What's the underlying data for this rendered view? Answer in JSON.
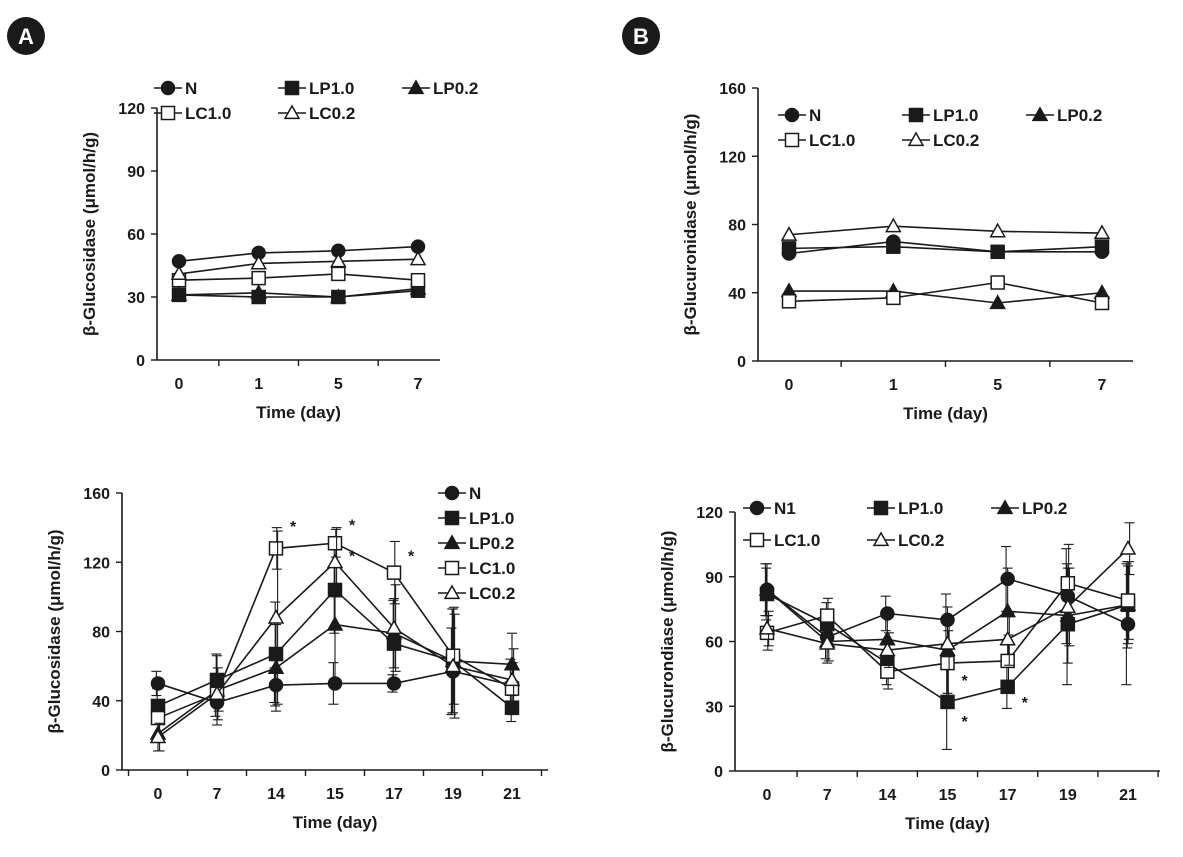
{
  "colors": {
    "ink": "#1a1a1a",
    "badge": "#1a1a1a",
    "badge_text": "#ffffff",
    "open_fill": "#ffffff"
  },
  "panels": [
    {
      "label": "A"
    },
    {
      "label": "B"
    }
  ],
  "chart_data": [
    {
      "type": "line",
      "panel": "A",
      "ylabel": "β-Glucosidase (μmol/h/g)",
      "xlabel": "Time (day)",
      "categories": [
        "0",
        "1",
        "5",
        "7"
      ],
      "ylim": [
        0,
        120
      ],
      "yticks": [
        "0",
        "30",
        "60",
        "90",
        "120"
      ],
      "legend_placement": "top",
      "series": [
        {
          "name": "N",
          "marker": "circle",
          "filled": true,
          "values": [
            47,
            51,
            52,
            54
          ]
        },
        {
          "name": "LP1.0",
          "marker": "square",
          "filled": true,
          "values": [
            31,
            30,
            30,
            33
          ]
        },
        {
          "name": "LP0.2",
          "marker": "triangle",
          "filled": true,
          "values": [
            31,
            32,
            30,
            34
          ]
        },
        {
          "name": "LC1.0",
          "marker": "square",
          "filled": false,
          "values": [
            38,
            39,
            41,
            38
          ]
        },
        {
          "name": "LC0.2",
          "marker": "triangle",
          "filled": false,
          "values": [
            41,
            46,
            47,
            48
          ]
        }
      ]
    },
    {
      "type": "line",
      "panel": "B",
      "ylabel": "β-Glucuronidase (μmol/h/g)",
      "xlabel": "Time (day)",
      "categories": [
        "0",
        "1",
        "5",
        "7"
      ],
      "ylim": [
        0,
        160
      ],
      "yticks": [
        "0",
        "40",
        "80",
        "120",
        "160"
      ],
      "legend_placement": "top",
      "series": [
        {
          "name": "N",
          "marker": "circle",
          "filled": true,
          "values": [
            63,
            70,
            64,
            64
          ]
        },
        {
          "name": "LP1.0",
          "marker": "square",
          "filled": true,
          "values": [
            66,
            67,
            64,
            67
          ]
        },
        {
          "name": "LP0.2",
          "marker": "triangle",
          "filled": true,
          "values": [
            41,
            41,
            34,
            40
          ]
        },
        {
          "name": "LC1.0",
          "marker": "square",
          "filled": false,
          "values": [
            35,
            37,
            46,
            34
          ]
        },
        {
          "name": "LC0.2",
          "marker": "triangle",
          "filled": false,
          "values": [
            74,
            79,
            76,
            75
          ]
        }
      ]
    },
    {
      "type": "line",
      "panel": "A",
      "ylabel": "β-Glucosidase (μmol/h/g)",
      "xlabel": "Time (day)",
      "categories": [
        "0",
        "7",
        "14",
        "15",
        "17",
        "19",
        "21"
      ],
      "ylim": [
        0,
        160
      ],
      "yticks": [
        "0",
        "40",
        "80",
        "120",
        "160"
      ],
      "legend_placement": "right",
      "series": [
        {
          "name": "N",
          "marker": "circle",
          "filled": true,
          "values": [
            50,
            39,
            49,
            50,
            50,
            57,
            49
          ],
          "errors": [
            7,
            8,
            10,
            12,
            5,
            25,
            15
          ]
        },
        {
          "name": "LP1.0",
          "marker": "square",
          "filled": true,
          "values": [
            37,
            52,
            67,
            104,
            73,
            63,
            36
          ],
          "errors": [
            10,
            15,
            30,
            25,
            25,
            30,
            8
          ]
        },
        {
          "name": "LP0.2",
          "marker": "triangle",
          "filled": true,
          "values": [
            21,
            46,
            59,
            84,
            79,
            63,
            61
          ],
          "errors": [
            10,
            20,
            25,
            35,
            20,
            30,
            18
          ]
        },
        {
          "name": "LC1.0",
          "marker": "square",
          "filled": false,
          "values": [
            30,
            44,
            128,
            131,
            114,
            66,
            47
          ],
          "errors": [
            10,
            15,
            12,
            8,
            18,
            28,
            15
          ]
        },
        {
          "name": "LC0.2",
          "marker": "triangle",
          "filled": false,
          "values": [
            19,
            44,
            88,
            120,
            82,
            60,
            52
          ],
          "errors": [
            8,
            10,
            50,
            20,
            25,
            30,
            18
          ]
        }
      ],
      "annotations": [
        {
          "text": "*",
          "x": "14",
          "y": 142
        },
        {
          "text": "*",
          "x": "15",
          "y": 143
        },
        {
          "text": "*",
          "x": "15",
          "y": 125
        },
        {
          "text": "*",
          "x": "17",
          "y": 125
        }
      ]
    },
    {
      "type": "line",
      "panel": "B",
      "ylabel": "β-Glucurondiase (μmol/h/g)",
      "xlabel": "Time (day)",
      "categories": [
        "0",
        "7",
        "14",
        "15",
        "17",
        "19",
        "21"
      ],
      "ylim": [
        0,
        120
      ],
      "yticks": [
        "0",
        "30",
        "60",
        "90",
        "120"
      ],
      "legend_placement": "top",
      "series": [
        {
          "name": "N1",
          "marker": "circle",
          "filled": true,
          "values": [
            84,
            62,
            73,
            70,
            89,
            81,
            68
          ],
          "errors": [
            12,
            10,
            8,
            12,
            15,
            22,
            28
          ]
        },
        {
          "name": "LP1.0",
          "marker": "square",
          "filled": true,
          "values": [
            82,
            68,
            50,
            32,
            39,
            68,
            77
          ],
          "errors": [
            12,
            10,
            10,
            22,
            10,
            28,
            20
          ]
        },
        {
          "name": "LP0.2",
          "marker": "triangle",
          "filled": true,
          "values": [
            84,
            60,
            61,
            56,
            74,
            72,
            77
          ],
          "errors": [
            12,
            10,
            10,
            20,
            20,
            22,
            18
          ]
        },
        {
          "name": "LC1.0",
          "marker": "square",
          "filled": false,
          "values": [
            64,
            72,
            46,
            50,
            51,
            87,
            79
          ],
          "errors": [
            8,
            8,
            8,
            15,
            12,
            18,
            18
          ]
        },
        {
          "name": "LC0.2",
          "marker": "triangle",
          "filled": false,
          "values": [
            66,
            59,
            56,
            59,
            61,
            76,
            103
          ],
          "errors": [
            8,
            8,
            8,
            12,
            12,
            18,
            12
          ]
        }
      ],
      "annotations": [
        {
          "text": "*",
          "x": "15",
          "y": 43
        },
        {
          "text": "*",
          "x": "15",
          "y": 24
        },
        {
          "text": "*",
          "x": "17",
          "y": 33
        }
      ]
    }
  ]
}
